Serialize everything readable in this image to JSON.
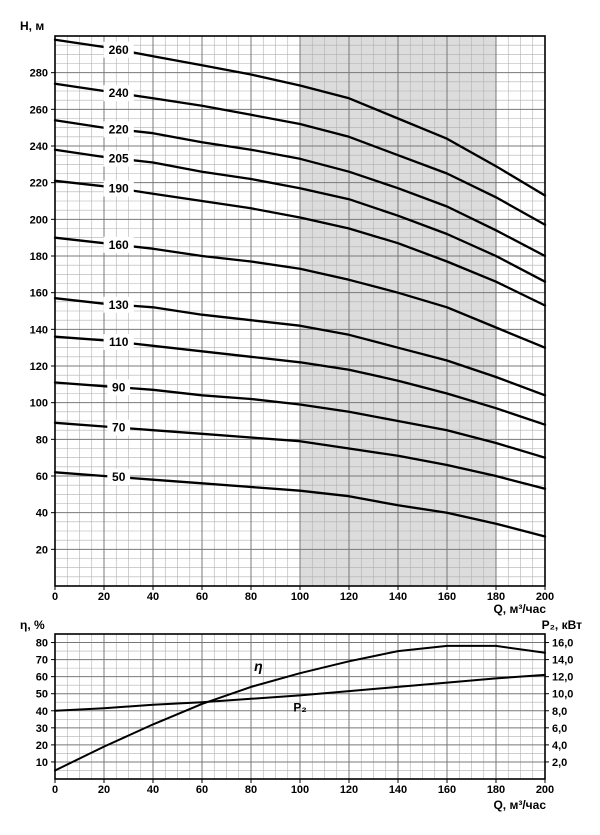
{
  "chart_data": [
    {
      "type": "line",
      "name": "pump-head-flow-curves",
      "title": "",
      "xlabel": "Q, м³/час",
      "ylabel": "H, м",
      "xlim": [
        0,
        200
      ],
      "ylim": [
        0,
        300
      ],
      "x_major": 20,
      "x_minor": 5,
      "y_major": 20,
      "y_minor": 5,
      "grid": true,
      "band": {
        "x0": 100,
        "x1": 180,
        "color": "#dcdcdc"
      },
      "x": [
        0,
        20,
        40,
        60,
        80,
        100,
        120,
        140,
        160,
        180,
        200
      ],
      "stroke": 2.3,
      "series": [
        {
          "name": "260",
          "values": [
            298,
            294,
            289,
            284,
            279,
            273,
            266,
            255,
            244,
            229,
            213
          ],
          "label_q": 26
        },
        {
          "name": "240",
          "values": [
            274,
            270,
            266,
            262,
            257,
            252,
            245,
            235,
            225,
            212,
            197
          ],
          "label_q": 26
        },
        {
          "name": "220",
          "values": [
            254,
            250,
            247,
            242,
            238,
            233,
            226,
            217,
            207,
            194,
            180
          ],
          "label_q": 26
        },
        {
          "name": "205",
          "values": [
            238,
            234,
            231,
            226,
            222,
            217,
            211,
            202,
            192,
            180,
            166
          ],
          "label_q": 26
        },
        {
          "name": "190",
          "values": [
            221,
            218,
            214,
            210,
            206,
            201,
            195,
            187,
            177,
            166,
            153
          ],
          "label_q": 26
        },
        {
          "name": "160",
          "values": [
            190,
            187,
            184,
            180,
            177,
            173,
            167,
            160,
            152,
            141,
            130
          ],
          "label_q": 26
        },
        {
          "name": "130",
          "values": [
            157,
            154,
            152,
            148,
            145,
            142,
            137,
            130,
            123,
            114,
            104
          ],
          "label_q": 26
        },
        {
          "name": "110",
          "values": [
            136,
            134,
            131,
            128,
            125,
            122,
            118,
            112,
            105,
            97,
            88
          ],
          "label_q": 26
        },
        {
          "name": "90",
          "values": [
            111,
            109,
            107,
            104,
            102,
            99,
            95,
            90,
            85,
            78,
            70
          ],
          "label_q": 26
        },
        {
          "name": "70",
          "values": [
            89,
            87,
            85,
            83,
            81,
            79,
            75,
            71,
            66,
            60,
            53
          ],
          "label_q": 26
        },
        {
          "name": "50",
          "values": [
            62,
            60,
            58,
            56,
            54,
            52,
            49,
            44,
            40,
            34,
            27
          ],
          "label_q": 26
        }
      ]
    },
    {
      "type": "line",
      "name": "efficiency-and-power-curves",
      "title": "",
      "xlabel": "Q, м³/час",
      "ylabel_left": "η, %",
      "ylabel_right": "P₂, кВт",
      "xlim": [
        0,
        200
      ],
      "ylim_left": [
        0,
        85
      ],
      "ylim_right": [
        0,
        17
      ],
      "x_major": 20,
      "x_minor": 5,
      "y_major": 10,
      "y_minor": 5,
      "y_major_right": 2,
      "grid": true,
      "x": [
        0,
        20,
        40,
        60,
        80,
        100,
        120,
        140,
        160,
        180,
        200
      ],
      "stroke": 2,
      "series": [
        {
          "name": "η",
          "axis": "left",
          "values": [
            5,
            19,
            32,
            44,
            54,
            62,
            69,
            75,
            78,
            78,
            74
          ],
          "label_q": 83,
          "label_dy": -18,
          "italic": true,
          "label_box": false
        },
        {
          "name": "P₂",
          "axis": "right",
          "values": [
            8.0,
            8.3,
            8.7,
            9.0,
            9.4,
            9.8,
            10.3,
            10.8,
            11.3,
            11.8,
            12.2
          ],
          "label_q": 100,
          "label_dy": 12,
          "label_box": false
        }
      ]
    }
  ]
}
